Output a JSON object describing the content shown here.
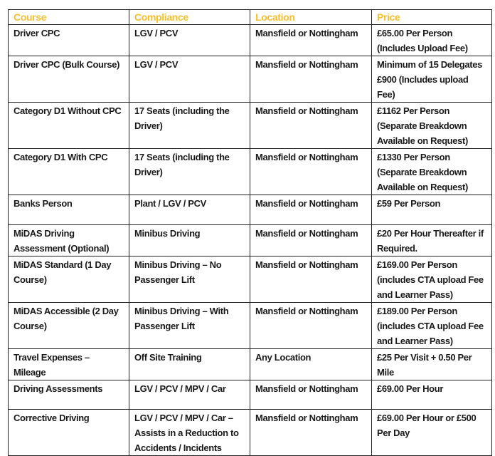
{
  "colors": {
    "header_text": "#f5c030",
    "text": "#1a1a1a",
    "border": "#222222"
  },
  "headers": [
    "Course",
    "Compliance",
    "Location",
    "Price"
  ],
  "rows": [
    [
      "Driver CPC",
      "LGV / PCV",
      "Mansfield or Nottingham",
      "£65.00 Per Person (Includes Upload Fee)"
    ],
    [
      "Driver CPC (Bulk Course)",
      "LGV / PCV",
      "Mansfield or Nottingham",
      "Minimum of 15 Delegates £900 (Includes upload Fee)"
    ],
    [
      "Category D1 Without CPC",
      "17 Seats (including the Driver)",
      "Mansfield or Nottingham",
      "£1162 Per Person (Separate Breakdown Available on Request)"
    ],
    [
      "Category D1 With CPC",
      "17 Seats (including the Driver)",
      "Mansfield or Nottingham",
      "£1330 Per Person (Separate Breakdown Available on Request)"
    ],
    [
      "Banks Person",
      "Plant / LGV / PCV",
      "Mansfield or Nottingham",
      "£59 Per Person"
    ],
    [
      "MiDAS Driving Assessment (Optional)",
      "Minibus Driving",
      "Mansfield or Nottingham",
      "£20 Per Hour Thereafter if Required."
    ],
    [
      "MiDAS Standard (1 Day Course)",
      "Minibus Driving – No Passenger Lift",
      "Mansfield or Nottingham",
      "£169.00 Per Person (includes CTA upload Fee and Learner Pass)"
    ],
    [
      "MiDAS Accessible (2 Day Course)",
      "Minibus Driving – With Passenger Lift",
      "Mansfield or Nottingham",
      "£189.00 Per Person (includes CTA upload Fee and Learner Pass)"
    ],
    [
      "Travel Expenses – Mileage",
      "Off Site Training",
      "Any Location",
      "£25 Per Visit + 0.50 Per Mile"
    ],
    [
      "Driving Assessments",
      "LGV / PCV / MPV / Car",
      "Mansfield or Nottingham",
      "£69.00 Per Hour"
    ],
    [
      "Corrective Driving",
      "LGV / PCV / MPV / Car – Assists in a Reduction to Accidents / Incidents",
      "Mansfield or Nottingham",
      "£69.00 Per Hour or £500 Per Day"
    ]
  ]
}
